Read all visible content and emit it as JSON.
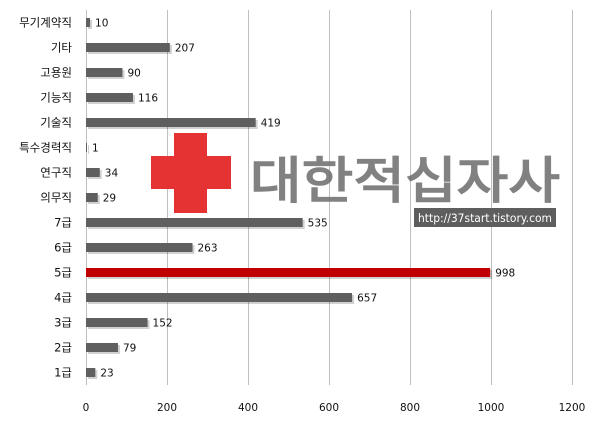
{
  "chart_data": {
    "type": "bar",
    "orientation": "horizontal",
    "categories": [
      "무기계약직",
      "기타",
      "고용원",
      "기능직",
      "기술직",
      "특수경력직",
      "연구직",
      "의무직",
      "7급",
      "6급",
      "5급",
      "4급",
      "3급",
      "2급",
      "1급"
    ],
    "values": [
      10,
      207,
      90,
      116,
      419,
      1,
      34,
      29,
      535,
      263,
      998,
      657,
      152,
      79,
      23
    ],
    "highlight_category": "5급",
    "xlim": [
      0,
      1200
    ],
    "xticks": [
      0,
      200,
      400,
      600,
      800,
      1000,
      1200
    ],
    "grid": "vertical",
    "title": "",
    "xlabel": "",
    "ylabel": "",
    "colors": {
      "bar": "#5f5f5f",
      "highlight": "#c00000",
      "grid": "#bfbfbf"
    }
  },
  "watermark": {
    "org_name": "대한적십자사",
    "url": "http://37start.tistory.com",
    "cross_color": "#e53333",
    "url_box_color": "#5e5e5e"
  }
}
